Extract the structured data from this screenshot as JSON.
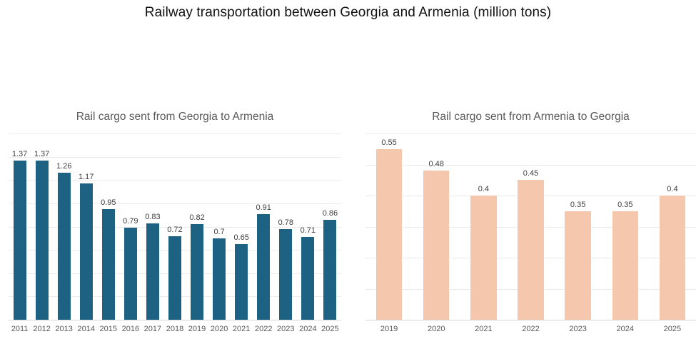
{
  "page_title": "Railway transportation between Georgia and Armenia (million tons)",
  "chart_data": [
    {
      "type": "bar",
      "title": "Rail cargo sent from Georgia to Armenia",
      "categories": [
        "2011",
        "2012",
        "2013",
        "2014",
        "2015",
        "2016",
        "2017",
        "2018",
        "2019",
        "2020",
        "2021",
        "2022",
        "2023",
        "2024",
        "2025"
      ],
      "values": [
        1.37,
        1.37,
        1.26,
        1.17,
        0.95,
        0.79,
        0.83,
        0.72,
        0.82,
        0.7,
        0.65,
        0.91,
        0.78,
        0.71,
        0.86
      ],
      "xlabel": "",
      "ylabel": "",
      "ylim": [
        0,
        1.6
      ],
      "grid_step": 0.2,
      "grid": true,
      "legend": false,
      "data_labels": true,
      "bar_color": "#1e6283",
      "label_color": "#404040",
      "axis_label_color": "#595959",
      "title_color": "#595959"
    },
    {
      "type": "bar",
      "title": "Rail cargo sent from Armenia to Georgia",
      "categories": [
        "2019",
        "2020",
        "2021",
        "2022",
        "2023",
        "2024",
        "2025"
      ],
      "values": [
        0.55,
        0.48,
        0.4,
        0.45,
        0.35,
        0.35,
        0.4
      ],
      "xlabel": "",
      "ylabel": "",
      "ylim": [
        0,
        0.6
      ],
      "grid_step": 0.1,
      "grid": true,
      "legend": false,
      "data_labels": true,
      "bar_color": "#f5c7ac",
      "label_color": "#404040",
      "axis_label_color": "#595959",
      "title_color": "#595959"
    }
  ]
}
